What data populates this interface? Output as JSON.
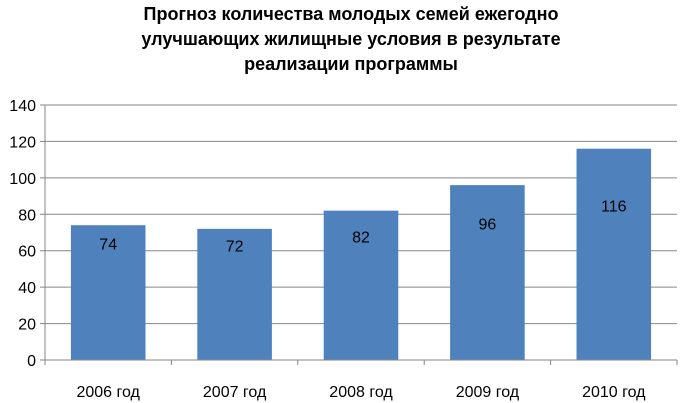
{
  "chart_data": {
    "type": "bar",
    "title_lines": [
      "Прогноз количества молодых семей ежегодно",
      "улучшающих жилищные условия в результате",
      "реализации программы"
    ],
    "categories": [
      "2006 год",
      "2007 год",
      "2008 год",
      "2009 год",
      "2010 год"
    ],
    "values": [
      74,
      72,
      82,
      96,
      116
    ],
    "data_labels": [
      "74",
      "72",
      "82",
      "96",
      "116"
    ],
    "ylim": [
      0,
      140
    ],
    "yticks": [
      "0",
      "20",
      "40",
      "60",
      "80",
      "100",
      "120",
      "140"
    ],
    "grid": true,
    "legend": "none",
    "bar_color": "#4f81bd"
  }
}
